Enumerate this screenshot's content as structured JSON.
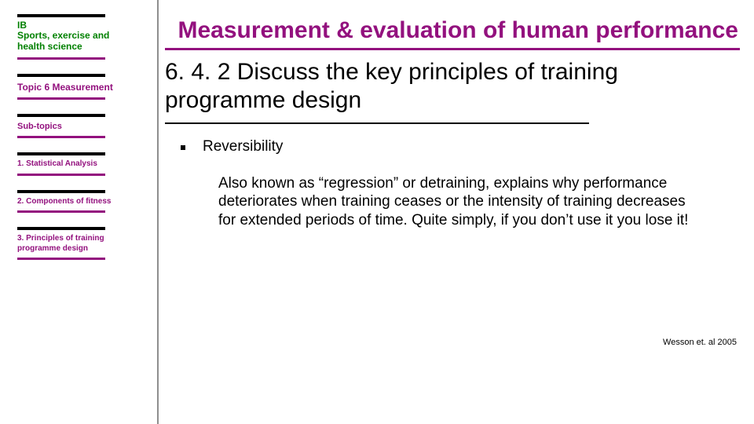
{
  "colors": {
    "accent_purple": "#93117e",
    "ib_green": "#008000",
    "rule_black": "#000000",
    "divider_gray": "#8e8e8e",
    "background": "#ffffff"
  },
  "sidebar": {
    "ib_label": "IB",
    "course_label": "Sports, exercise and health science",
    "topic_label": "Topic 6 Measurement",
    "subtopics_label": "Sub-topics",
    "items": [
      {
        "label": "1. Statistical Analysis"
      },
      {
        "label": "2. Components of fitness"
      },
      {
        "label": "3. Principles of training programme design"
      }
    ]
  },
  "main": {
    "title": "Measurement & evaluation of human performance",
    "heading": "6. 4. 2 Discuss the key principles of training programme design",
    "bullet_label": "Reversibility",
    "paragraph": "Also known as “regression” or detraining, explains why performance deteriorates when training ceases or the intensity of training decreases for extended periods of time. Quite simply, if you don’t use it you lose it!",
    "citation": "Wesson et. al 2005"
  }
}
